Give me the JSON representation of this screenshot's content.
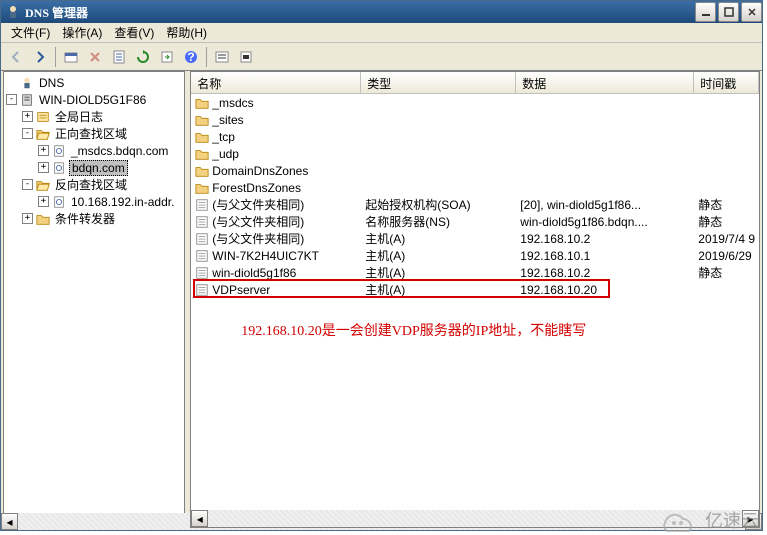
{
  "window": {
    "title": "DNS 管理器"
  },
  "menu": {
    "file": "文件(F)",
    "action": "操作(A)",
    "view": "查看(V)",
    "help": "帮助(H)"
  },
  "tree": {
    "root": "DNS",
    "server": "WIN-DIOLD5G1F86",
    "globalLog": "全局日志",
    "fwdZone": "正向查找区域",
    "fwd1": "_msdcs.bdqn.com",
    "fwd2": "bdqn.com",
    "revZone": "反向查找区域",
    "rev1": "10.168.192.in-addr.",
    "condFwd": "条件转发器"
  },
  "cols": {
    "name": "名称",
    "type": "类型",
    "data": "数据",
    "ts": "时间戳"
  },
  "rows": [
    {
      "icon": "folder",
      "name": "_msdcs",
      "type": "",
      "data": "",
      "ts": ""
    },
    {
      "icon": "folder",
      "name": "_sites",
      "type": "",
      "data": "",
      "ts": ""
    },
    {
      "icon": "folder",
      "name": "_tcp",
      "type": "",
      "data": "",
      "ts": ""
    },
    {
      "icon": "folder",
      "name": "_udp",
      "type": "",
      "data": "",
      "ts": ""
    },
    {
      "icon": "folder",
      "name": "DomainDnsZones",
      "type": "",
      "data": "",
      "ts": ""
    },
    {
      "icon": "folder",
      "name": "ForestDnsZones",
      "type": "",
      "data": "",
      "ts": ""
    },
    {
      "icon": "rec",
      "name": "(与父文件夹相同)",
      "type": "起始授权机构(SOA)",
      "data": "[20], win-diold5g1f86...",
      "ts": "静态"
    },
    {
      "icon": "rec",
      "name": "(与父文件夹相同)",
      "type": "名称服务器(NS)",
      "data": "win-diold5g1f86.bdqn....",
      "ts": "静态"
    },
    {
      "icon": "rec",
      "name": "(与父文件夹相同)",
      "type": "主机(A)",
      "data": "192.168.10.2",
      "ts": "2019/7/4 9"
    },
    {
      "icon": "rec",
      "name": "WIN-7K2H4UIC7KT",
      "type": "主机(A)",
      "data": "192.168.10.1",
      "ts": "2019/6/29"
    },
    {
      "icon": "rec",
      "name": "win-diold5g1f86",
      "type": "主机(A)",
      "data": "192.168.10.2",
      "ts": "静态"
    },
    {
      "icon": "rec",
      "name": "VDPserver",
      "type": "主机(A)",
      "data": "192.168.10.20",
      "ts": ""
    }
  ],
  "highlight_row_index": 11,
  "annotation_text": "192.168.10.20是一会创建VDP服务器的IP地址，不能瞎写",
  "watermark_text": "亿速云",
  "colors": {
    "titlebar_start": "#3a6ea5",
    "titlebar_end": "#1f4a7a",
    "highlight": "#d40000",
    "folder": "#f3d181"
  }
}
